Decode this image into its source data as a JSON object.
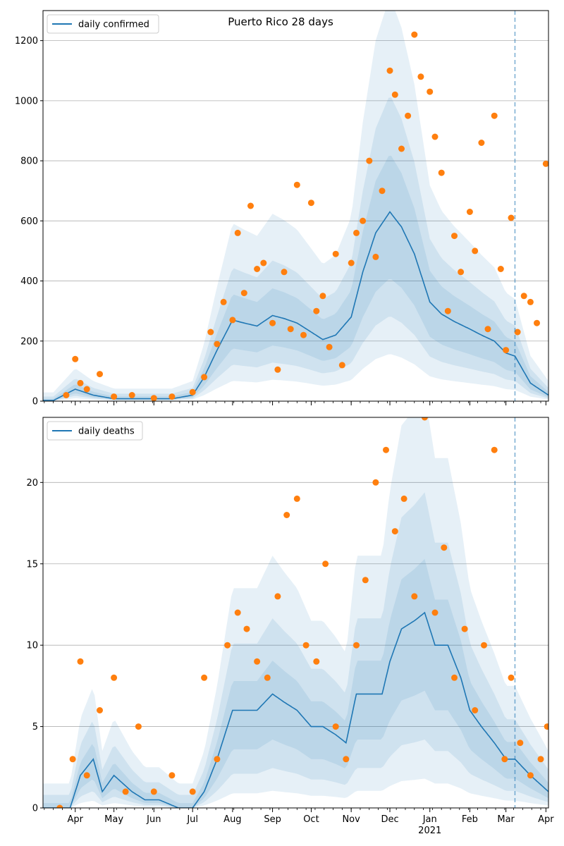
{
  "chart_data": [
    {
      "type": "line",
      "title": "Puerto Rico 28 days",
      "xlabel": "",
      "ylabel": "",
      "ylim": [
        0,
        1300
      ],
      "yticks": [
        0,
        200,
        400,
        600,
        800,
        1000,
        1200
      ],
      "x_range": [
        "2020-03-07",
        "2021-04-03"
      ],
      "grid": "y",
      "legend": {
        "position": "top-left",
        "entries": [
          "daily confirmed"
        ]
      },
      "forecast_start": "2021-03-08",
      "colors": {
        "line": "#1f77b4",
        "points": "#ff7f0e",
        "band": "#1f77b4"
      },
      "series": [
        {
          "name": "daily confirmed",
          "x": [
            "2020-03-15",
            "2020-04-01",
            "2020-04-15",
            "2020-05-01",
            "2020-05-15",
            "2020-06-01",
            "2020-06-15",
            "2020-07-01",
            "2020-07-10",
            "2020-07-20",
            "2020-08-01",
            "2020-08-10",
            "2020-08-20",
            "2020-09-01",
            "2020-09-10",
            "2020-09-20",
            "2020-10-01",
            "2020-10-10",
            "2020-10-20",
            "2020-11-01",
            "2020-11-10",
            "2020-11-20",
            "2020-12-01",
            "2020-12-10",
            "2020-12-20",
            "2021-01-01",
            "2021-01-10",
            "2021-01-20",
            "2021-02-01",
            "2021-02-10",
            "2021-02-20",
            "2021-03-01",
            "2021-03-08",
            "2021-03-20",
            "2021-04-03"
          ],
          "values": [
            2,
            40,
            20,
            8,
            8,
            8,
            8,
            20,
            80,
            170,
            270,
            260,
            250,
            285,
            275,
            260,
            230,
            205,
            220,
            280,
            430,
            560,
            630,
            580,
            490,
            330,
            290,
            265,
            240,
            220,
            200,
            160,
            150,
            60,
            20
          ]
        },
        {
          "name": "observed",
          "x": [
            "2020-03-25",
            "2020-04-01",
            "2020-04-05",
            "2020-04-10",
            "2020-04-20",
            "2020-05-01",
            "2020-05-15",
            "2020-06-01",
            "2020-06-15",
            "2020-07-01",
            "2020-07-10",
            "2020-07-15",
            "2020-07-20",
            "2020-07-25",
            "2020-08-01",
            "2020-08-05",
            "2020-08-10",
            "2020-08-15",
            "2020-08-20",
            "2020-08-25",
            "2020-09-01",
            "2020-09-05",
            "2020-09-10",
            "2020-09-15",
            "2020-09-20",
            "2020-09-25",
            "2020-10-01",
            "2020-10-05",
            "2020-10-10",
            "2020-10-15",
            "2020-10-20",
            "2020-10-25",
            "2020-11-01",
            "2020-11-05",
            "2020-11-10",
            "2020-11-15",
            "2020-11-20",
            "2020-11-25",
            "2020-12-01",
            "2020-12-05",
            "2020-12-10",
            "2020-12-15",
            "2020-12-20",
            "2020-12-25",
            "2021-01-01",
            "2021-01-05",
            "2021-01-10",
            "2021-01-15",
            "2021-01-20",
            "2021-01-25",
            "2021-02-01",
            "2021-02-05",
            "2021-02-10",
            "2021-02-15",
            "2021-02-20",
            "2021-02-25",
            "2021-03-01",
            "2021-03-05",
            "2021-03-10",
            "2021-03-15",
            "2021-03-20",
            "2021-03-25",
            "2021-04-01"
          ],
          "values": [
            20,
            140,
            60,
            40,
            90,
            15,
            20,
            10,
            15,
            30,
            80,
            230,
            190,
            330,
            270,
            560,
            360,
            650,
            440,
            460,
            260,
            105,
            430,
            240,
            720,
            220,
            660,
            300,
            350,
            180,
            490,
            120,
            460,
            560,
            600,
            800,
            480,
            700,
            1100,
            1020,
            840,
            950,
            1220,
            1080,
            1030,
            880,
            760,
            300,
            550,
            430,
            630,
            500,
            860,
            240,
            950,
            440,
            170,
            610,
            230,
            350,
            330,
            260,
            790
          ]
        }
      ]
    },
    {
      "type": "line",
      "title": "",
      "xlabel": "",
      "ylabel": "",
      "ylim": [
        0,
        24
      ],
      "yticks": [
        0,
        5,
        10,
        15,
        20
      ],
      "x_range": [
        "2020-03-07",
        "2021-04-03"
      ],
      "xticks": [
        "Apr",
        "May",
        "Jun",
        "Jul",
        "Aug",
        "Sep",
        "Oct",
        "Nov",
        "Dec",
        "Jan",
        "Feb",
        "Mar",
        "Apr"
      ],
      "xtick_year": "2021",
      "grid": "y",
      "legend": {
        "position": "top-left",
        "entries": [
          "daily deaths"
        ]
      },
      "forecast_start": "2021-03-08",
      "series": [
        {
          "name": "daily deaths",
          "x": [
            "2020-03-15",
            "2020-03-28",
            "2020-04-05",
            "2020-04-15",
            "2020-04-22",
            "2020-05-01",
            "2020-05-15",
            "2020-05-25",
            "2020-06-05",
            "2020-06-20",
            "2020-07-01",
            "2020-07-10",
            "2020-07-20",
            "2020-08-01",
            "2020-08-10",
            "2020-08-20",
            "2020-09-01",
            "2020-09-10",
            "2020-09-20",
            "2020-10-01",
            "2020-10-10",
            "2020-10-20",
            "2020-10-28",
            "2020-11-05",
            "2020-11-15",
            "2020-11-25",
            "2020-12-01",
            "2020-12-10",
            "2020-12-20",
            "2020-12-28",
            "2021-01-05",
            "2021-01-15",
            "2021-01-25",
            "2021-02-01",
            "2021-02-10",
            "2021-02-20",
            "2021-03-01",
            "2021-03-08",
            "2021-03-20",
            "2021-04-03"
          ],
          "values": [
            0,
            0,
            2,
            3,
            1,
            2,
            1,
            0.5,
            0.5,
            0,
            0,
            1,
            3,
            6,
            6,
            6,
            7,
            6.5,
            6,
            5,
            5,
            4.5,
            4,
            7,
            7,
            7,
            9,
            11,
            11.5,
            12,
            10,
            10,
            8,
            6,
            5,
            4,
            3,
            3,
            2,
            1
          ]
        },
        {
          "name": "observed",
          "x": [
            "2020-03-20",
            "2020-03-30",
            "2020-04-05",
            "2020-04-10",
            "2020-04-20",
            "2020-05-01",
            "2020-05-10",
            "2020-05-20",
            "2020-06-01",
            "2020-06-15",
            "2020-07-01",
            "2020-07-10",
            "2020-07-20",
            "2020-07-28",
            "2020-08-05",
            "2020-08-12",
            "2020-08-20",
            "2020-08-28",
            "2020-09-05",
            "2020-09-12",
            "2020-09-20",
            "2020-09-27",
            "2020-10-05",
            "2020-10-12",
            "2020-10-20",
            "2020-10-28",
            "2020-11-05",
            "2020-11-12",
            "2020-11-20",
            "2020-11-28",
            "2020-12-05",
            "2020-12-12",
            "2020-12-20",
            "2020-12-28",
            "2021-01-05",
            "2021-01-12",
            "2021-01-20",
            "2021-01-28",
            "2021-02-05",
            "2021-02-12",
            "2021-02-20",
            "2021-02-28",
            "2021-03-05",
            "2021-03-12",
            "2021-03-20",
            "2021-03-28",
            "2021-04-02"
          ],
          "values": [
            0,
            3,
            9,
            2,
            6,
            8,
            1,
            5,
            1,
            2,
            1,
            8,
            3,
            10,
            12,
            11,
            9,
            8,
            13,
            18,
            19,
            10,
            9,
            15,
            5,
            3,
            10,
            14,
            20,
            22,
            17,
            19,
            13,
            24,
            12,
            16,
            8,
            11,
            6,
            10,
            22,
            3,
            8,
            4,
            2,
            3,
            5
          ]
        }
      ]
    }
  ]
}
